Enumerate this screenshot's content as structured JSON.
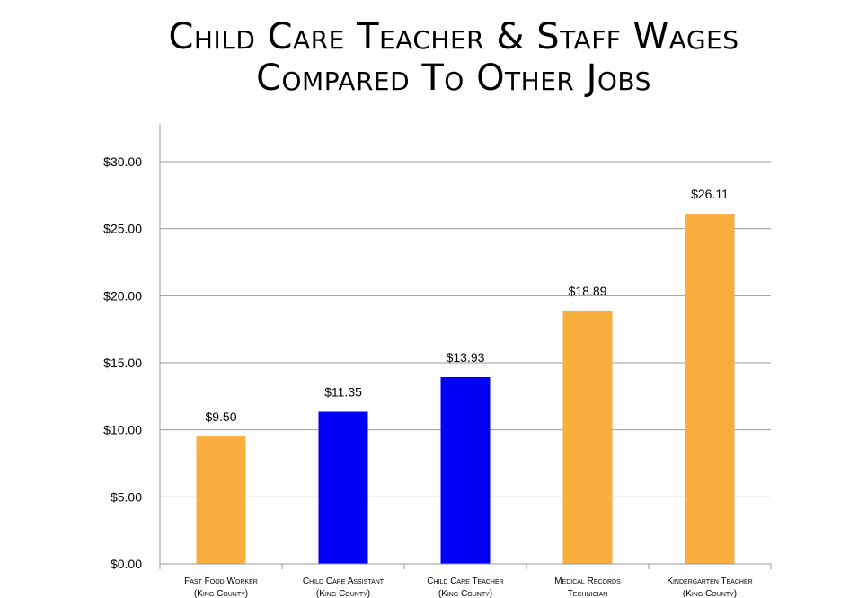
{
  "chart_data": {
    "type": "bar",
    "title_lines": [
      "Child Care Teacher & Staff Wages",
      "Compared To Other Jobs"
    ],
    "categories": [
      [
        "Fast Food Worker",
        "(King County)"
      ],
      [
        "Child Care Assistant",
        "(King County)"
      ],
      [
        "Child Care Teacher",
        "(King County)"
      ],
      [
        "Medical Records",
        "Technician"
      ],
      [
        "Kindergarten Teacher",
        "(King County)"
      ]
    ],
    "values": [
      9.5,
      11.35,
      13.93,
      18.89,
      26.11
    ],
    "value_labels": [
      "$9.50",
      "$11.35",
      "$13.93",
      "$18.89",
      "$26.11"
    ],
    "bar_colors": [
      "#F9AE3D",
      "#0000F5",
      "#0000F5",
      "#F9AE3D",
      "#F9AE3D"
    ],
    "ylim": [
      0,
      30
    ],
    "yticks": [
      0,
      5,
      10,
      15,
      20,
      25,
      30
    ],
    "ytick_labels": [
      "$0.00",
      "$5.00",
      "$10.00",
      "$15.00",
      "$20.00",
      "$25.00",
      "$30.00"
    ],
    "grid": true,
    "legend": "none",
    "xlabel": "",
    "ylabel": ""
  }
}
